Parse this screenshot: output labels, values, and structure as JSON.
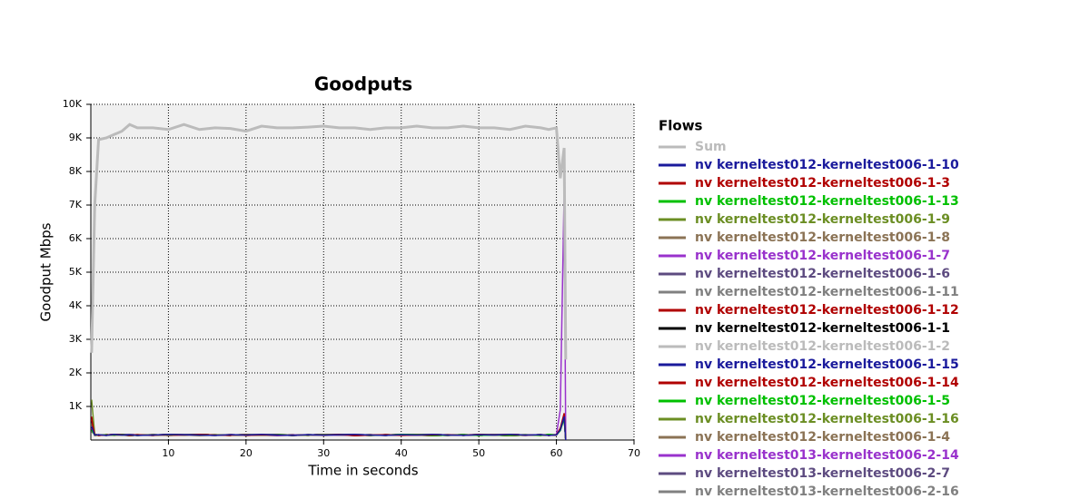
{
  "chart_data": {
    "type": "line",
    "title": "Goodputs",
    "x_label": "Time in seconds",
    "y_label": "Goodput Mbps",
    "legend_title": "Flows",
    "grid": true,
    "xlim": [
      0,
      70
    ],
    "xticks": [
      10,
      20,
      30,
      40,
      50,
      60,
      70
    ],
    "ylim": [
      0,
      10000
    ],
    "yticks": [
      {
        "value": 1000,
        "label": "1K"
      },
      {
        "value": 2000,
        "label": "2K"
      },
      {
        "value": 3000,
        "label": "3K"
      },
      {
        "value": 4000,
        "label": "4K"
      },
      {
        "value": 5000,
        "label": "5K"
      },
      {
        "value": 6000,
        "label": "6K"
      },
      {
        "value": 7000,
        "label": "7K"
      },
      {
        "value": 8000,
        "label": "8K"
      },
      {
        "value": 9000,
        "label": "9K"
      },
      {
        "value": 10000,
        "label": "10K"
      }
    ],
    "x": [
      0.1,
      0.5,
      1,
      2,
      3,
      4,
      5,
      6,
      8,
      10,
      12,
      14,
      16,
      18,
      20,
      22,
      24,
      26,
      28,
      30,
      32,
      34,
      36,
      38,
      40,
      42,
      44,
      46,
      48,
      50,
      52,
      54,
      56,
      58,
      59,
      60,
      60.5,
      61,
      61.2
    ],
    "series": [
      {
        "name": "Sum",
        "color": "#bbbbbb",
        "values": [
          2600,
          7000,
          8950,
          9000,
          9100,
          9200,
          9400,
          9300,
          9300,
          9250,
          9400,
          9250,
          9300,
          9280,
          9200,
          9350,
          9300,
          9300,
          9320,
          9350,
          9300,
          9300,
          9250,
          9300,
          9300,
          9350,
          9300,
          9300,
          9350,
          9300,
          9300,
          9250,
          9350,
          9300,
          9250,
          9300,
          7800,
          8700,
          2400
        ]
      },
      {
        "name": "nv kerneltest012-kerneltest006-1-10",
        "color": "#1a1a9c",
        "values": [
          400,
          150,
          160,
          140,
          170,
          150,
          160,
          140,
          150,
          170,
          160,
          150,
          140,
          160,
          150,
          170,
          150,
          140,
          160,
          150,
          160,
          170,
          150,
          140,
          160,
          150,
          170,
          150,
          140,
          160,
          150,
          170,
          150,
          160,
          140,
          150,
          300,
          700,
          0
        ]
      },
      {
        "name": "nv kerneltest012-kerneltest006-1-3",
        "color": "#b00000",
        "values": [
          600,
          160,
          140,
          150,
          170,
          160,
          150,
          160,
          140,
          170,
          150,
          170,
          150,
          140,
          160,
          150,
          150,
          140,
          160,
          150,
          170,
          130,
          150,
          160,
          140,
          150,
          150,
          160,
          140,
          170,
          150,
          170,
          150,
          160,
          140,
          150,
          350,
          800,
          0
        ]
      },
      {
        "name": "nv kerneltest012-kerneltest006-1-13",
        "color": "#00c000",
        "values": [
          300,
          150,
          140,
          160,
          150,
          170,
          150,
          160,
          140,
          170,
          150,
          170,
          150,
          140,
          160,
          150,
          150,
          140,
          160,
          150,
          160,
          160,
          140,
          150,
          170,
          160,
          130,
          150,
          160,
          140,
          150,
          150,
          160,
          140,
          170,
          150,
          280,
          650,
          0
        ]
      },
      {
        "name": "nv kerneltest012-kerneltest006-1-9",
        "color": "#6b8e23",
        "values": [
          1200,
          170,
          150,
          140,
          160,
          150,
          150,
          140,
          160,
          150,
          160,
          150,
          160,
          140,
          170,
          150,
          160,
          140,
          150,
          170,
          160,
          150,
          140,
          160,
          150,
          170,
          170,
          150,
          160,
          140,
          150,
          130,
          150,
          160,
          140,
          150,
          320,
          720,
          0
        ]
      },
      {
        "name": "nv kerneltest012-kerneltest006-1-8",
        "color": "#8b7355",
        "values": [
          500,
          130,
          150,
          160,
          140,
          150,
          170,
          150,
          140,
          160,
          150,
          150,
          140,
          160,
          150,
          170,
          160,
          140,
          150,
          170,
          160,
          150,
          160,
          140,
          170,
          150,
          150,
          140,
          160,
          150,
          160,
          170,
          150,
          160,
          140,
          150,
          300,
          680,
          0
        ]
      },
      {
        "name": "nv kerneltest012-kerneltest006-1-7",
        "color": "#9932cc",
        "values": [
          350,
          160,
          140,
          150,
          170,
          160,
          170,
          150,
          140,
          160,
          150,
          150,
          160,
          140,
          170,
          150,
          130,
          150,
          160,
          140,
          150,
          150,
          140,
          160,
          150,
          170,
          170,
          150,
          160,
          140,
          150,
          150,
          140,
          160,
          150,
          160,
          900,
          7450,
          0
        ]
      },
      {
        "name": "nv kerneltest012-kerneltest006-1-6",
        "color": "#5d4b80",
        "values": [
          450,
          150,
          140,
          160,
          150,
          160,
          150,
          160,
          140,
          170,
          150,
          170,
          150,
          140,
          160,
          150,
          160,
          140,
          150,
          170,
          160,
          130,
          150,
          160,
          140,
          150,
          150,
          140,
          160,
          150,
          170,
          170,
          150,
          160,
          140,
          150,
          310,
          690,
          0
        ]
      },
      {
        "name": "nv kerneltest012-kerneltest006-1-11",
        "color": "#808080",
        "values": [
          250,
          170,
          150,
          160,
          140,
          150,
          150,
          140,
          160,
          150,
          170,
          160,
          140,
          150,
          170,
          160,
          150,
          160,
          140,
          170,
          150,
          170,
          150,
          140,
          160,
          150,
          130,
          150,
          160,
          140,
          150,
          150,
          140,
          160,
          150,
          160,
          290,
          640,
          0
        ]
      },
      {
        "name": "nv kerneltest012-kerneltest006-1-12",
        "color": "#b00000",
        "values": [
          700,
          150,
          140,
          160,
          150,
          170,
          130,
          150,
          160,
          140,
          150,
          170,
          150,
          160,
          140,
          150,
          150,
          160,
          140,
          170,
          150,
          160,
          140,
          150,
          170,
          160,
          150,
          140,
          160,
          150,
          160,
          170,
          150,
          140,
          160,
          150,
          330,
          760,
          0
        ]
      },
      {
        "name": "nv kerneltest012-kerneltest006-1-1",
        "color": "#000000",
        "values": [
          380,
          160,
          140,
          150,
          170,
          160,
          150,
          140,
          160,
          150,
          160,
          170,
          150,
          140,
          160,
          150,
          150,
          160,
          140,
          170,
          150,
          150,
          140,
          160,
          150,
          170,
          170,
          150,
          160,
          140,
          150,
          130,
          150,
          160,
          140,
          150,
          300,
          710,
          0
        ]
      },
      {
        "name": "nv kerneltest012-kerneltest006-1-2",
        "color": "#bbbbbb",
        "values": [
          420,
          150,
          140,
          160,
          150,
          160,
          170,
          150,
          160,
          140,
          150,
          150,
          140,
          160,
          150,
          170,
          150,
          160,
          140,
          170,
          150,
          160,
          140,
          150,
          170,
          160,
          170,
          150,
          140,
          160,
          150,
          150,
          140,
          160,
          150,
          160,
          280,
          620,
          0
        ]
      },
      {
        "name": "nv kerneltest012-kerneltest006-1-15",
        "color": "#1a1a9c",
        "values": [
          550,
          170,
          150,
          140,
          160,
          150,
          130,
          150,
          160,
          140,
          150,
          150,
          140,
          160,
          150,
          170,
          160,
          140,
          150,
          170,
          160,
          150,
          160,
          140,
          170,
          150,
          150,
          140,
          160,
          150,
          160,
          170,
          150,
          160,
          140,
          150,
          340,
          740,
          0
        ]
      },
      {
        "name": "nv kerneltest012-kerneltest006-1-14",
        "color": "#b00000",
        "values": [
          320,
          150,
          160,
          140,
          170,
          150,
          150,
          140,
          160,
          150,
          170,
          170,
          150,
          160,
          140,
          150,
          160,
          140,
          150,
          170,
          160,
          150,
          140,
          160,
          150,
          160,
          130,
          150,
          160,
          140,
          150,
          170,
          150,
          140,
          160,
          150,
          300,
          690,
          0
        ]
      },
      {
        "name": "nv kerneltest012-kerneltest006-1-5",
        "color": "#00c000",
        "values": [
          480,
          160,
          140,
          150,
          170,
          160,
          150,
          140,
          160,
          150,
          170,
          150,
          160,
          140,
          170,
          150,
          170,
          150,
          140,
          160,
          150,
          150,
          140,
          160,
          150,
          160,
          150,
          160,
          140,
          170,
          150,
          130,
          150,
          160,
          140,
          150,
          310,
          700,
          0
        ]
      },
      {
        "name": "nv kerneltest012-kerneltest006-1-16",
        "color": "#6b8e23",
        "values": [
          360,
          150,
          140,
          160,
          150,
          170,
          160,
          140,
          150,
          170,
          160,
          170,
          150,
          160,
          140,
          150,
          150,
          140,
          160,
          150,
          160,
          150,
          160,
          140,
          170,
          150,
          170,
          150,
          140,
          160,
          150,
          150,
          160,
          140,
          170,
          150,
          290,
          660,
          0
        ]
      },
      {
        "name": "nv kerneltest012-kerneltest006-1-4",
        "color": "#8b7355",
        "values": [
          600,
          170,
          150,
          140,
          160,
          150,
          150,
          160,
          140,
          170,
          150,
          130,
          150,
          160,
          140,
          150,
          160,
          140,
          150,
          170,
          160,
          170,
          150,
          140,
          160,
          150,
          150,
          140,
          160,
          150,
          170,
          150,
          140,
          160,
          150,
          160,
          320,
          730,
          0
        ]
      },
      {
        "name": "nv kerneltest013-kerneltest006-2-14",
        "color": "#9932cc",
        "values": [
          280,
          150,
          160,
          140,
          170,
          150,
          170,
          150,
          160,
          140,
          150,
          150,
          140,
          160,
          150,
          160,
          160,
          140,
          150,
          170,
          160,
          170,
          150,
          140,
          160,
          150,
          130,
          150,
          160,
          140,
          150,
          150,
          140,
          160,
          150,
          170,
          300,
          680,
          0
        ]
      },
      {
        "name": "nv kerneltest013-kerneltest006-2-7",
        "color": "#5d4b80",
        "values": [
          440,
          160,
          140,
          150,
          170,
          160,
          130,
          150,
          160,
          140,
          150,
          170,
          150,
          140,
          160,
          150,
          150,
          140,
          160,
          150,
          160,
          150,
          160,
          140,
          170,
          150,
          160,
          140,
          150,
          170,
          160,
          170,
          150,
          160,
          140,
          150,
          330,
          750,
          0
        ]
      },
      {
        "name": "nv kerneltest013-kerneltest006-2-16",
        "color": "#808080",
        "values": [
          390,
          150,
          140,
          160,
          150,
          170,
          160,
          140,
          150,
          170,
          160,
          150,
          140,
          160,
          150,
          160,
          170,
          150,
          160,
          140,
          150,
          150,
          160,
          140,
          170,
          150,
          170,
          150,
          140,
          160,
          150,
          130,
          150,
          160,
          140,
          150,
          300,
          700,
          0
        ]
      }
    ]
  }
}
